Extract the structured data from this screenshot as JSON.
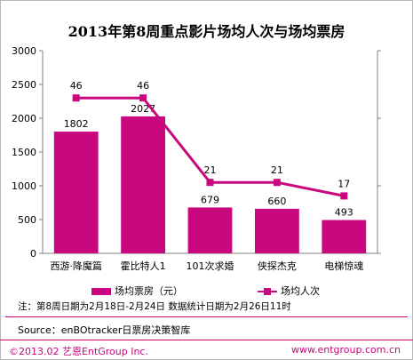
{
  "chart_data": {
    "type": "bar",
    "title": "2013年第8周重点影片场均人次与场均票房",
    "categories": [
      "西游·降魔篇",
      "霍比特人1",
      "101次求婚",
      "侠探杰克",
      "电梯惊魂"
    ],
    "series": [
      {
        "name": "场均票房（元）",
        "type": "bar",
        "axis": "left",
        "values": [
          1802,
          2027,
          679,
          660,
          493
        ]
      },
      {
        "name": "场均人次",
        "type": "line",
        "axis": "right",
        "values": [
          46,
          46,
          21,
          21,
          17
        ]
      }
    ],
    "y_left": {
      "ticks": [
        0,
        500,
        1000,
        1500,
        2000,
        2500,
        3000
      ],
      "range": [
        0,
        3000
      ]
    },
    "y_right": {
      "range": [
        0,
        60
      ],
      "labels_visible": false
    },
    "grid": false,
    "legend_position": "bottom"
  },
  "colors": {
    "accent": "#C9077E",
    "axis": "#808080"
  },
  "note": "注：第8周日期为2月18日-2月24日  数据统计日期为2月26日11时",
  "source": "Source：enBOtracker日票房决策智库",
  "copyright": "©2013.02 艺恩EntGroup Inc.",
  "site": "www.entgroup.com.cn"
}
